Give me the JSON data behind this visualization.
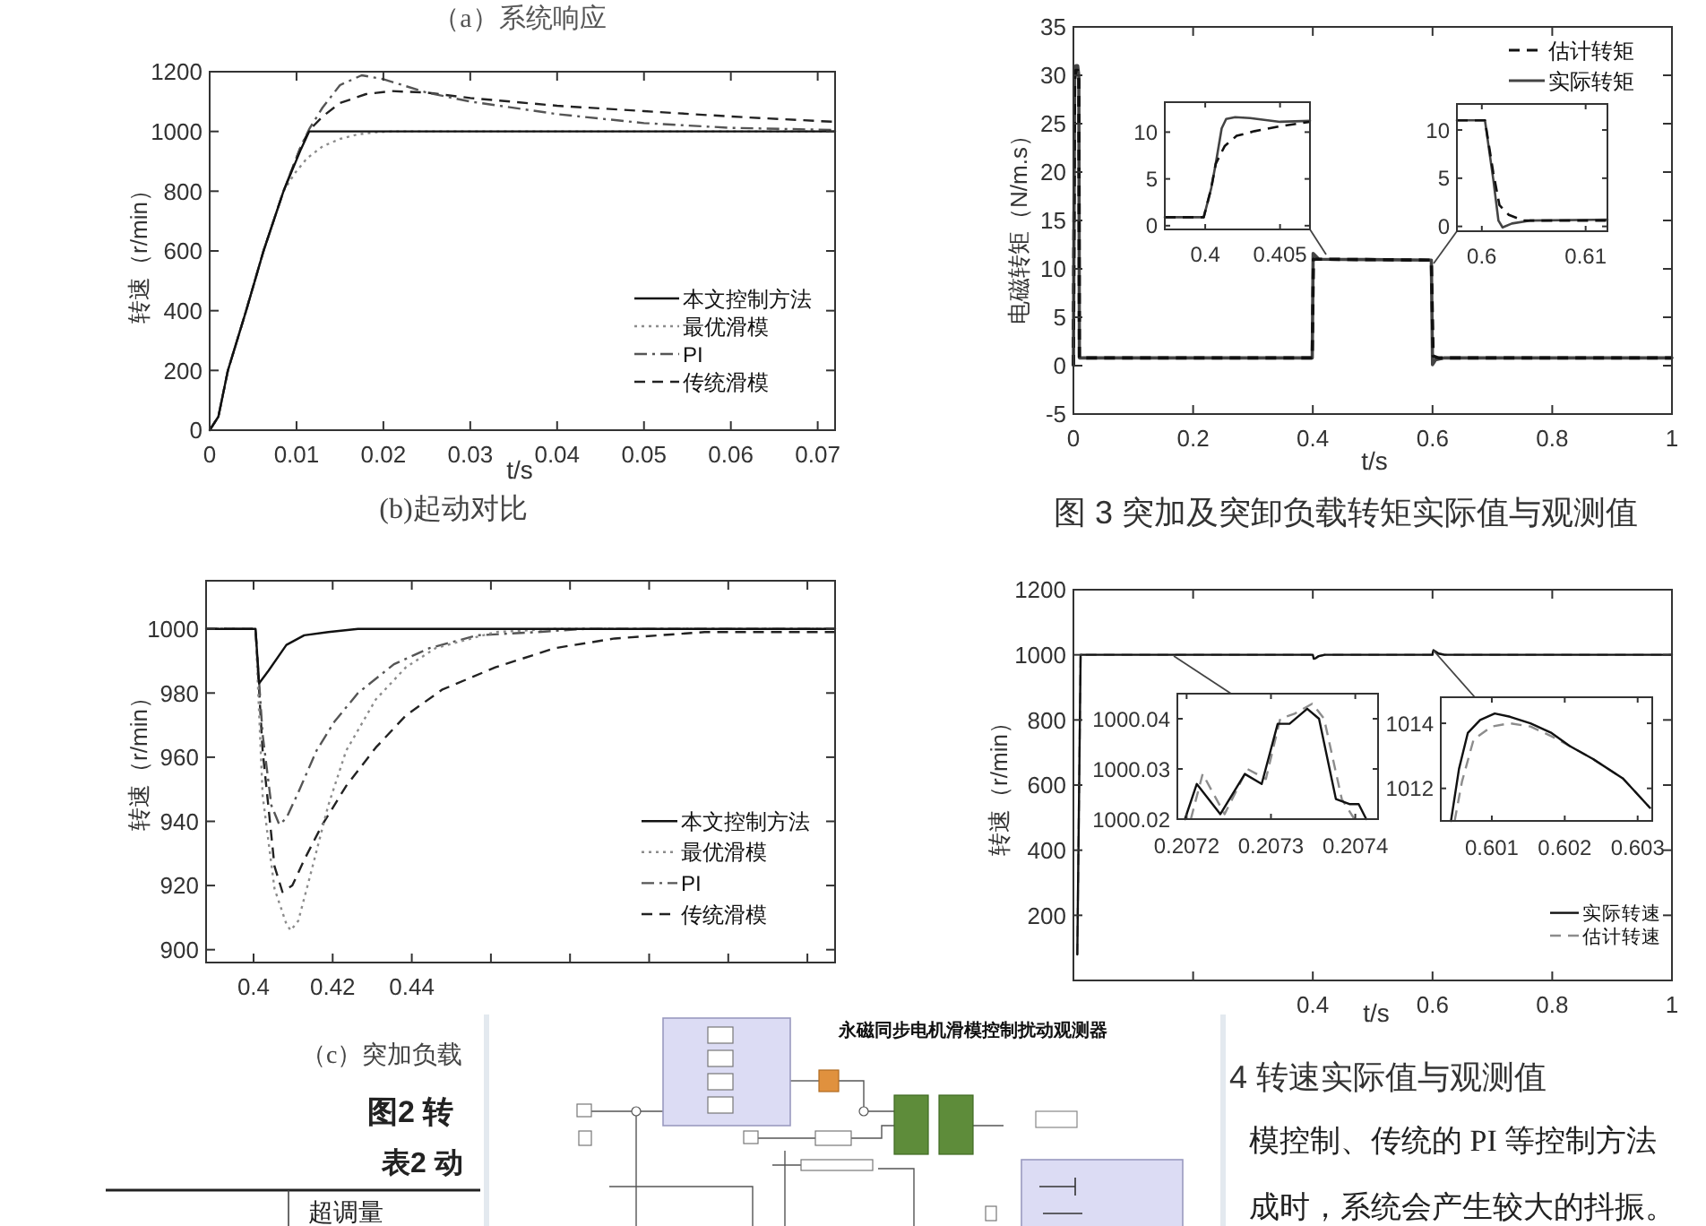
{
  "chart_data": [
    {
      "type": "line",
      "title": "(b)起动对比",
      "xlabel": "t/s",
      "ylabel": "转速（r/min）",
      "xlim": [
        0,
        0.072
      ],
      "ylim": [
        0,
        1200
      ],
      "xticks": [
        0,
        0.01,
        0.02,
        0.03,
        0.04,
        0.05,
        0.06,
        0.07
      ],
      "yticks": [
        0,
        200,
        400,
        600,
        800,
        1000,
        1200
      ],
      "legend": "bottom right",
      "series": [
        {
          "name": "本文控制方法",
          "color": "#111111",
          "line_style": "solid",
          "x": [
            0,
            0.001,
            0.0021,
            0.0042,
            0.0062,
            0.0085,
            0.0105,
            0.01145,
            0.072
          ],
          "values": [
            0,
            45,
            200,
            400,
            600,
            800,
            940,
            1000,
            1000
          ]
        },
        {
          "name": "最优滑模",
          "color": "#8c8c8c",
          "line_style": "dotted",
          "x": [
            0,
            0.001,
            0.0021,
            0.0042,
            0.0062,
            0.0085,
            0.0098,
            0.0112,
            0.013,
            0.015,
            0.017,
            0.019,
            0.021,
            0.072
          ],
          "values": [
            0,
            45,
            200,
            400,
            600,
            800,
            860,
            910,
            950,
            975,
            990,
            997,
            1000,
            1000
          ]
        },
        {
          "name": "PI",
          "color": "#555555",
          "line_style": "dashdot",
          "x": [
            0,
            0.001,
            0.0021,
            0.0042,
            0.0062,
            0.0085,
            0.0105,
            0.0115,
            0.013,
            0.015,
            0.0175,
            0.02,
            0.025,
            0.03,
            0.04,
            0.05,
            0.06,
            0.072
          ],
          "values": [
            0,
            45,
            200,
            400,
            600,
            800,
            950,
            1010,
            1080,
            1155,
            1188,
            1175,
            1130,
            1100,
            1058,
            1028,
            1012,
            1005
          ]
        },
        {
          "name": "传统滑模",
          "color": "#222222",
          "line_style": "dashed",
          "x": [
            0,
            0.001,
            0.0021,
            0.0042,
            0.0062,
            0.0085,
            0.0105,
            0.0115,
            0.013,
            0.015,
            0.018,
            0.021,
            0.025,
            0.03,
            0.04,
            0.05,
            0.06,
            0.072
          ],
          "values": [
            0,
            45,
            200,
            400,
            600,
            800,
            950,
            1005,
            1050,
            1095,
            1125,
            1135,
            1130,
            1112,
            1086,
            1068,
            1050,
            1032
          ]
        }
      ]
    },
    {
      "type": "line",
      "title": "图 3 突加及突卸负载转矩实际值与观测值",
      "xlabel": "t/s",
      "ylabel": "电磁转矩（N/m.s）",
      "xlim": [
        0,
        1
      ],
      "ylim": [
        -5,
        35
      ],
      "xticks": [
        0,
        0.2,
        0.4,
        0.6,
        0.8,
        1
      ],
      "yticks": [
        -5,
        0,
        5,
        10,
        15,
        20,
        25,
        30,
        35
      ],
      "legend": "top right",
      "series": [
        {
          "name": "估计转矩",
          "color": "#111111",
          "line_style": "dashed",
          "x": [
            0,
            0.002,
            0.004,
            0.007,
            0.009,
            0.01,
            0.399,
            0.401,
            0.41,
            0.598,
            0.601,
            0.61,
            1
          ],
          "values": [
            0,
            29.5,
            30.5,
            30.5,
            29.5,
            0.8,
            0.8,
            11,
            11,
            10.9,
            1,
            0.8,
            0.8
          ]
        },
        {
          "name": "实际转矩",
          "color": "#444444",
          "line_style": "solid",
          "x": [
            0,
            0.002,
            0.004,
            0.007,
            0.009,
            0.01,
            0.399,
            0.4005,
            0.41,
            0.598,
            0.6,
            0.605,
            0.62,
            1
          ],
          "values": [
            0,
            30,
            31,
            31,
            30,
            0.8,
            0.8,
            11.6,
            11,
            10.9,
            0.1,
            0.6,
            0.8,
            0.8
          ]
        }
      ]
    },
    {
      "type": "line",
      "xlim": [
        0.3973,
        0.407
      ],
      "ylim": [
        -0.4,
        13.2
      ],
      "xticks": [
        0.4,
        0.405
      ],
      "yticks": [
        0,
        5,
        10
      ],
      "series": [
        {
          "color": "#111111",
          "line_style": "dashed",
          "x": [
            0.3973,
            0.3999,
            0.4004,
            0.4007,
            0.4013,
            0.4021,
            0.4033,
            0.4049,
            0.407
          ],
          "values": [
            0.9,
            0.9,
            4,
            6.6,
            8.5,
            9.6,
            10.1,
            10.6,
            11.1
          ]
        },
        {
          "color": "#444444",
          "line_style": "solid",
          "x": [
            0.3973,
            0.3999,
            0.4004,
            0.4007,
            0.4011,
            0.4014,
            0.402,
            0.403,
            0.405,
            0.407
          ],
          "values": [
            0.9,
            0.9,
            4,
            6.6,
            10.4,
            11.4,
            11.6,
            11.5,
            11.1,
            11.2
          ]
        }
      ]
    },
    {
      "type": "line",
      "xlim": [
        0.5976,
        0.6121
      ],
      "ylim": [
        -0.5,
        12.7
      ],
      "xticks": [
        0.6,
        0.61
      ],
      "yticks": [
        0,
        5,
        10
      ],
      "series": [
        {
          "color": "#111111",
          "line_style": "dashed",
          "x": [
            0.5976,
            0.6003,
            0.6011,
            0.6017,
            0.6026,
            0.604,
            0.6121
          ],
          "values": [
            11,
            11,
            5.6,
            2.2,
            1.2,
            0.6,
            0.6
          ]
        },
        {
          "color": "#444444",
          "line_style": "solid",
          "x": [
            0.5976,
            0.6003,
            0.6011,
            0.6016,
            0.602,
            0.6029,
            0.6046,
            0.6121
          ],
          "values": [
            11,
            11,
            4.9,
            0.6,
            -0.1,
            0.3,
            0.6,
            0.7
          ]
        }
      ]
    },
    {
      "type": "line",
      "title": "（c）突加负载",
      "ylabel": "转速（r/min）",
      "xlim": [
        0.388,
        0.547
      ],
      "ylim": [
        896,
        1015
      ],
      "xticks": [
        0.4,
        0.42,
        0.44,
        {
          "value": 0.46,
          "label": null
        },
        {
          "value": 0.48,
          "label": null
        },
        {
          "value": 0.5,
          "label": null
        },
        {
          "value": 0.52,
          "label": null
        },
        {
          "value": 0.54,
          "label": null
        }
      ],
      "yticks": [
        900,
        920,
        940,
        960,
        980,
        1000
      ],
      "legend": "bottom right",
      "series": [
        {
          "name": "本文控制方法",
          "color": "#111111",
          "line_style": "solid",
          "x": [
            0.388,
            0.4005,
            0.4014,
            0.4038,
            0.4083,
            0.4128,
            0.4189,
            0.4264,
            0.547
          ],
          "values": [
            1000,
            1000,
            983,
            987,
            995,
            998,
            999,
            1000,
            1000
          ]
        },
        {
          "name": "最优滑模",
          "color": "#8c8c8c",
          "line_style": "dotted",
          "x": [
            0.388,
            0.4005,
            0.4023,
            0.4053,
            0.4083,
            0.4094,
            0.4113,
            0.4143,
            0.4189,
            0.4234,
            0.4309,
            0.4385,
            0.446,
            0.4611,
            0.4762,
            0.547
          ],
          "values": [
            1000,
            1000,
            948,
            919,
            908,
            906,
            909,
            923,
            945,
            962,
            978,
            988,
            994,
            999,
            1000,
            1000
          ]
        },
        {
          "name": "PI",
          "color": "#555555",
          "line_style": "dashdot",
          "x": [
            0.388,
            0.4005,
            0.4023,
            0.4045,
            0.4065,
            0.4083,
            0.4113,
            0.4159,
            0.4204,
            0.4264,
            0.4355,
            0.4445,
            0.4566,
            0.4717,
            0.4838,
            0.547
          ],
          "values": [
            1000,
            1000,
            967,
            945,
            939,
            941,
            949,
            962,
            971,
            980,
            989,
            994,
            998,
            999,
            1000,
            1000
          ]
        },
        {
          "name": "传统滑模",
          "color": "#222222",
          "line_style": "dashed",
          "x": [
            0.388,
            0.4005,
            0.4023,
            0.4053,
            0.4073,
            0.4098,
            0.4128,
            0.4174,
            0.4234,
            0.4309,
            0.4385,
            0.4476,
            0.4611,
            0.4762,
            0.4913,
            0.514,
            0.547
          ],
          "values": [
            1000,
            1000,
            962,
            926,
            918,
            920,
            928,
            939,
            951,
            963,
            973,
            981,
            988,
            994,
            997,
            999,
            999
          ]
        }
      ]
    },
    {
      "type": "line",
      "title": "4 转速实际值与观测值",
      "xlabel": "t/s",
      "ylabel": "转速（r/min）",
      "xlim": [
        0,
        1
      ],
      "ylim": [
        0,
        1200
      ],
      "xticks": [
        {
          "value": 0,
          "label": null
        },
        {
          "value": 0.2,
          "label": null
        },
        0.4,
        0.6,
        0.8,
        1
      ],
      "yticks": [
        {
          "value": 0,
          "label": null
        },
        200,
        400,
        600,
        800,
        1000,
        1200
      ],
      "legend": "bottom right",
      "series": [
        {
          "name": "实际转速",
          "color": "#111111",
          "line_style": "solid",
          "x": [
            0.0065,
            0.012,
            0.4,
            0.4015,
            0.405,
            0.41,
            0.42,
            0.6,
            0.6005,
            0.6015,
            0.605,
            0.61,
            0.62,
            1
          ],
          "values": [
            80,
            1000,
            1000,
            988,
            990,
            996,
            1000,
            1000,
            1008,
            1014,
            1010,
            1004,
            1000,
            1000
          ]
        },
        {
          "name": "估计转速",
          "color": "#8c8c8c",
          "line_style": "dashed",
          "x": [
            0.0065,
            0.012,
            0.4,
            0.4015,
            0.405,
            0.41,
            0.42,
            0.6,
            0.6005,
            0.6015,
            0.605,
            0.61,
            0.62,
            1
          ],
          "values": [
            80,
            1000,
            1000,
            988,
            990,
            996,
            1000,
            1000,
            1007,
            1013,
            1010,
            1004,
            1000,
            1000
          ]
        }
      ]
    },
    {
      "type": "line",
      "xlim": [
        0.207189,
        0.207427
      ],
      "ylim": [
        1000.02,
        1000.045
      ],
      "xticks": [
        0.2072,
        0.2073,
        0.2074
      ],
      "yticks": [
        1000.02,
        1000.03,
        1000.04
      ],
      "series": [
        {
          "color": "#111111",
          "line_style": "solid",
          "x": [
            0.207198,
            0.207212,
            0.20724,
            0.207269,
            0.207289,
            0.207308,
            0.207322,
            0.207343,
            0.207357,
            0.207377,
            0.207393,
            0.207404,
            0.207413
          ],
          "values": [
            1000.02,
            1000.027,
            1000.021,
            1000.029,
            1000.027,
            1000.039,
            1000.039,
            1000.042,
            1000.04,
            1000.024,
            1000.023,
            1000.023,
            1000.02
          ]
        },
        {
          "color": "#8c8c8c",
          "line_style": "dashed",
          "x": [
            0.207205,
            0.207219,
            0.207245,
            0.207272,
            0.207294,
            0.207311,
            0.207328,
            0.207349,
            0.207363,
            0.207384,
            0.207399
          ],
          "values": [
            1000.02,
            1000.029,
            1000.021,
            1000.03,
            1000.028,
            1000.04,
            1000.041,
            1000.043,
            1000.04,
            1000.024,
            1000.02
          ]
        }
      ]
    },
    {
      "type": "line",
      "xlim": [
        0.6003,
        0.6032
      ],
      "ylim": [
        1011,
        1014.8
      ],
      "xticks": [
        0.601,
        0.602,
        0.603
      ],
      "yticks": [
        1012,
        1014
      ],
      "series": [
        {
          "color": "#111111",
          "line_style": "solid",
          "x": [
            0.60044,
            0.60055,
            0.60067,
            0.60084,
            0.60104,
            0.60125,
            0.60153,
            0.60182,
            0.60207,
            0.60239,
            0.6028,
            0.60317
          ],
          "values": [
            1011,
            1012.6,
            1013.7,
            1014.1,
            1014.3,
            1014.2,
            1014,
            1013.7,
            1013.3,
            1012.9,
            1012.3,
            1011.4
          ]
        },
        {
          "color": "#8c8c8c",
          "line_style": "dashed",
          "x": [
            0.60049,
            0.60059,
            0.60075,
            0.601,
            0.60125,
            0.60153,
            0.60182,
            0.60207,
            0.60239,
            0.6028,
            0.60317
          ],
          "values": [
            1011,
            1012.2,
            1013.5,
            1013.9,
            1014,
            1013.9,
            1013.6,
            1013.3,
            1012.9,
            1012.3,
            1011.4
          ]
        }
      ]
    },
    {
      "type": "other",
      "annotations": [
        "（a）系统响应",
        "图2 转",
        "表2 动",
        "超调量",
        "模控制、传统的 PI 等控制方法",
        "成时，系统会产生较大的抖振。",
        "永磁同步电机滑模控制扰动观测器"
      ]
    }
  ]
}
